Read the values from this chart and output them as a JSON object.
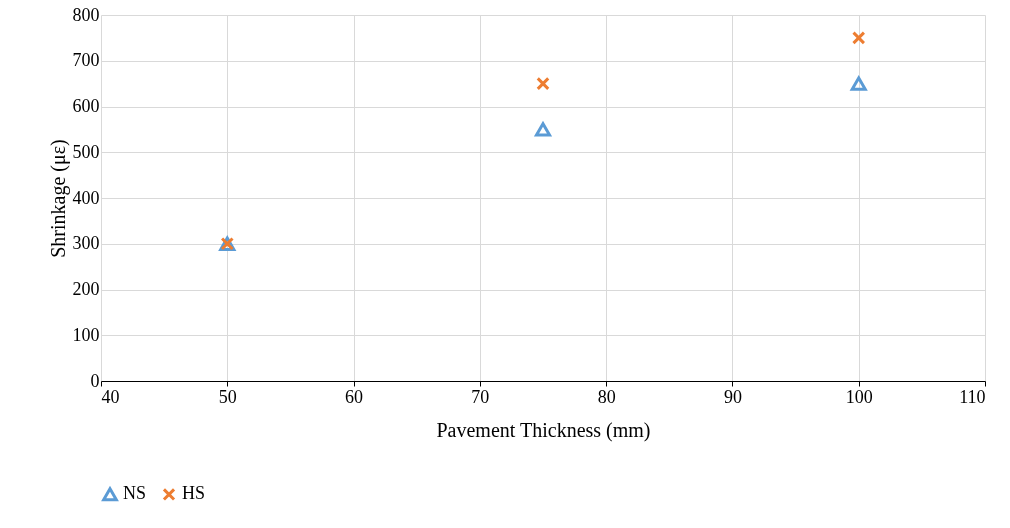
{
  "chart_data": {
    "type": "scatter",
    "xlabel": "Pavement Thickness (mm)",
    "ylabel": "Shrinkage (με)",
    "x": [
      50,
      75,
      100
    ],
    "series": [
      {
        "name": "NS",
        "color": "#5b9bd5",
        "marker": "triangle",
        "values": [
          300,
          550,
          650
        ]
      },
      {
        "name": "HS",
        "color": "#ed7d31",
        "marker": "cross",
        "values": [
          300,
          650,
          750
        ]
      }
    ],
    "xlim": [
      40,
      110
    ],
    "xticks": [
      40,
      50,
      60,
      70,
      80,
      90,
      100,
      110
    ],
    "ylim": [
      0,
      800
    ],
    "yticks": [
      0,
      100,
      200,
      300,
      400,
      500,
      600,
      700,
      800
    ],
    "grid": true,
    "legend": "bottom"
  }
}
